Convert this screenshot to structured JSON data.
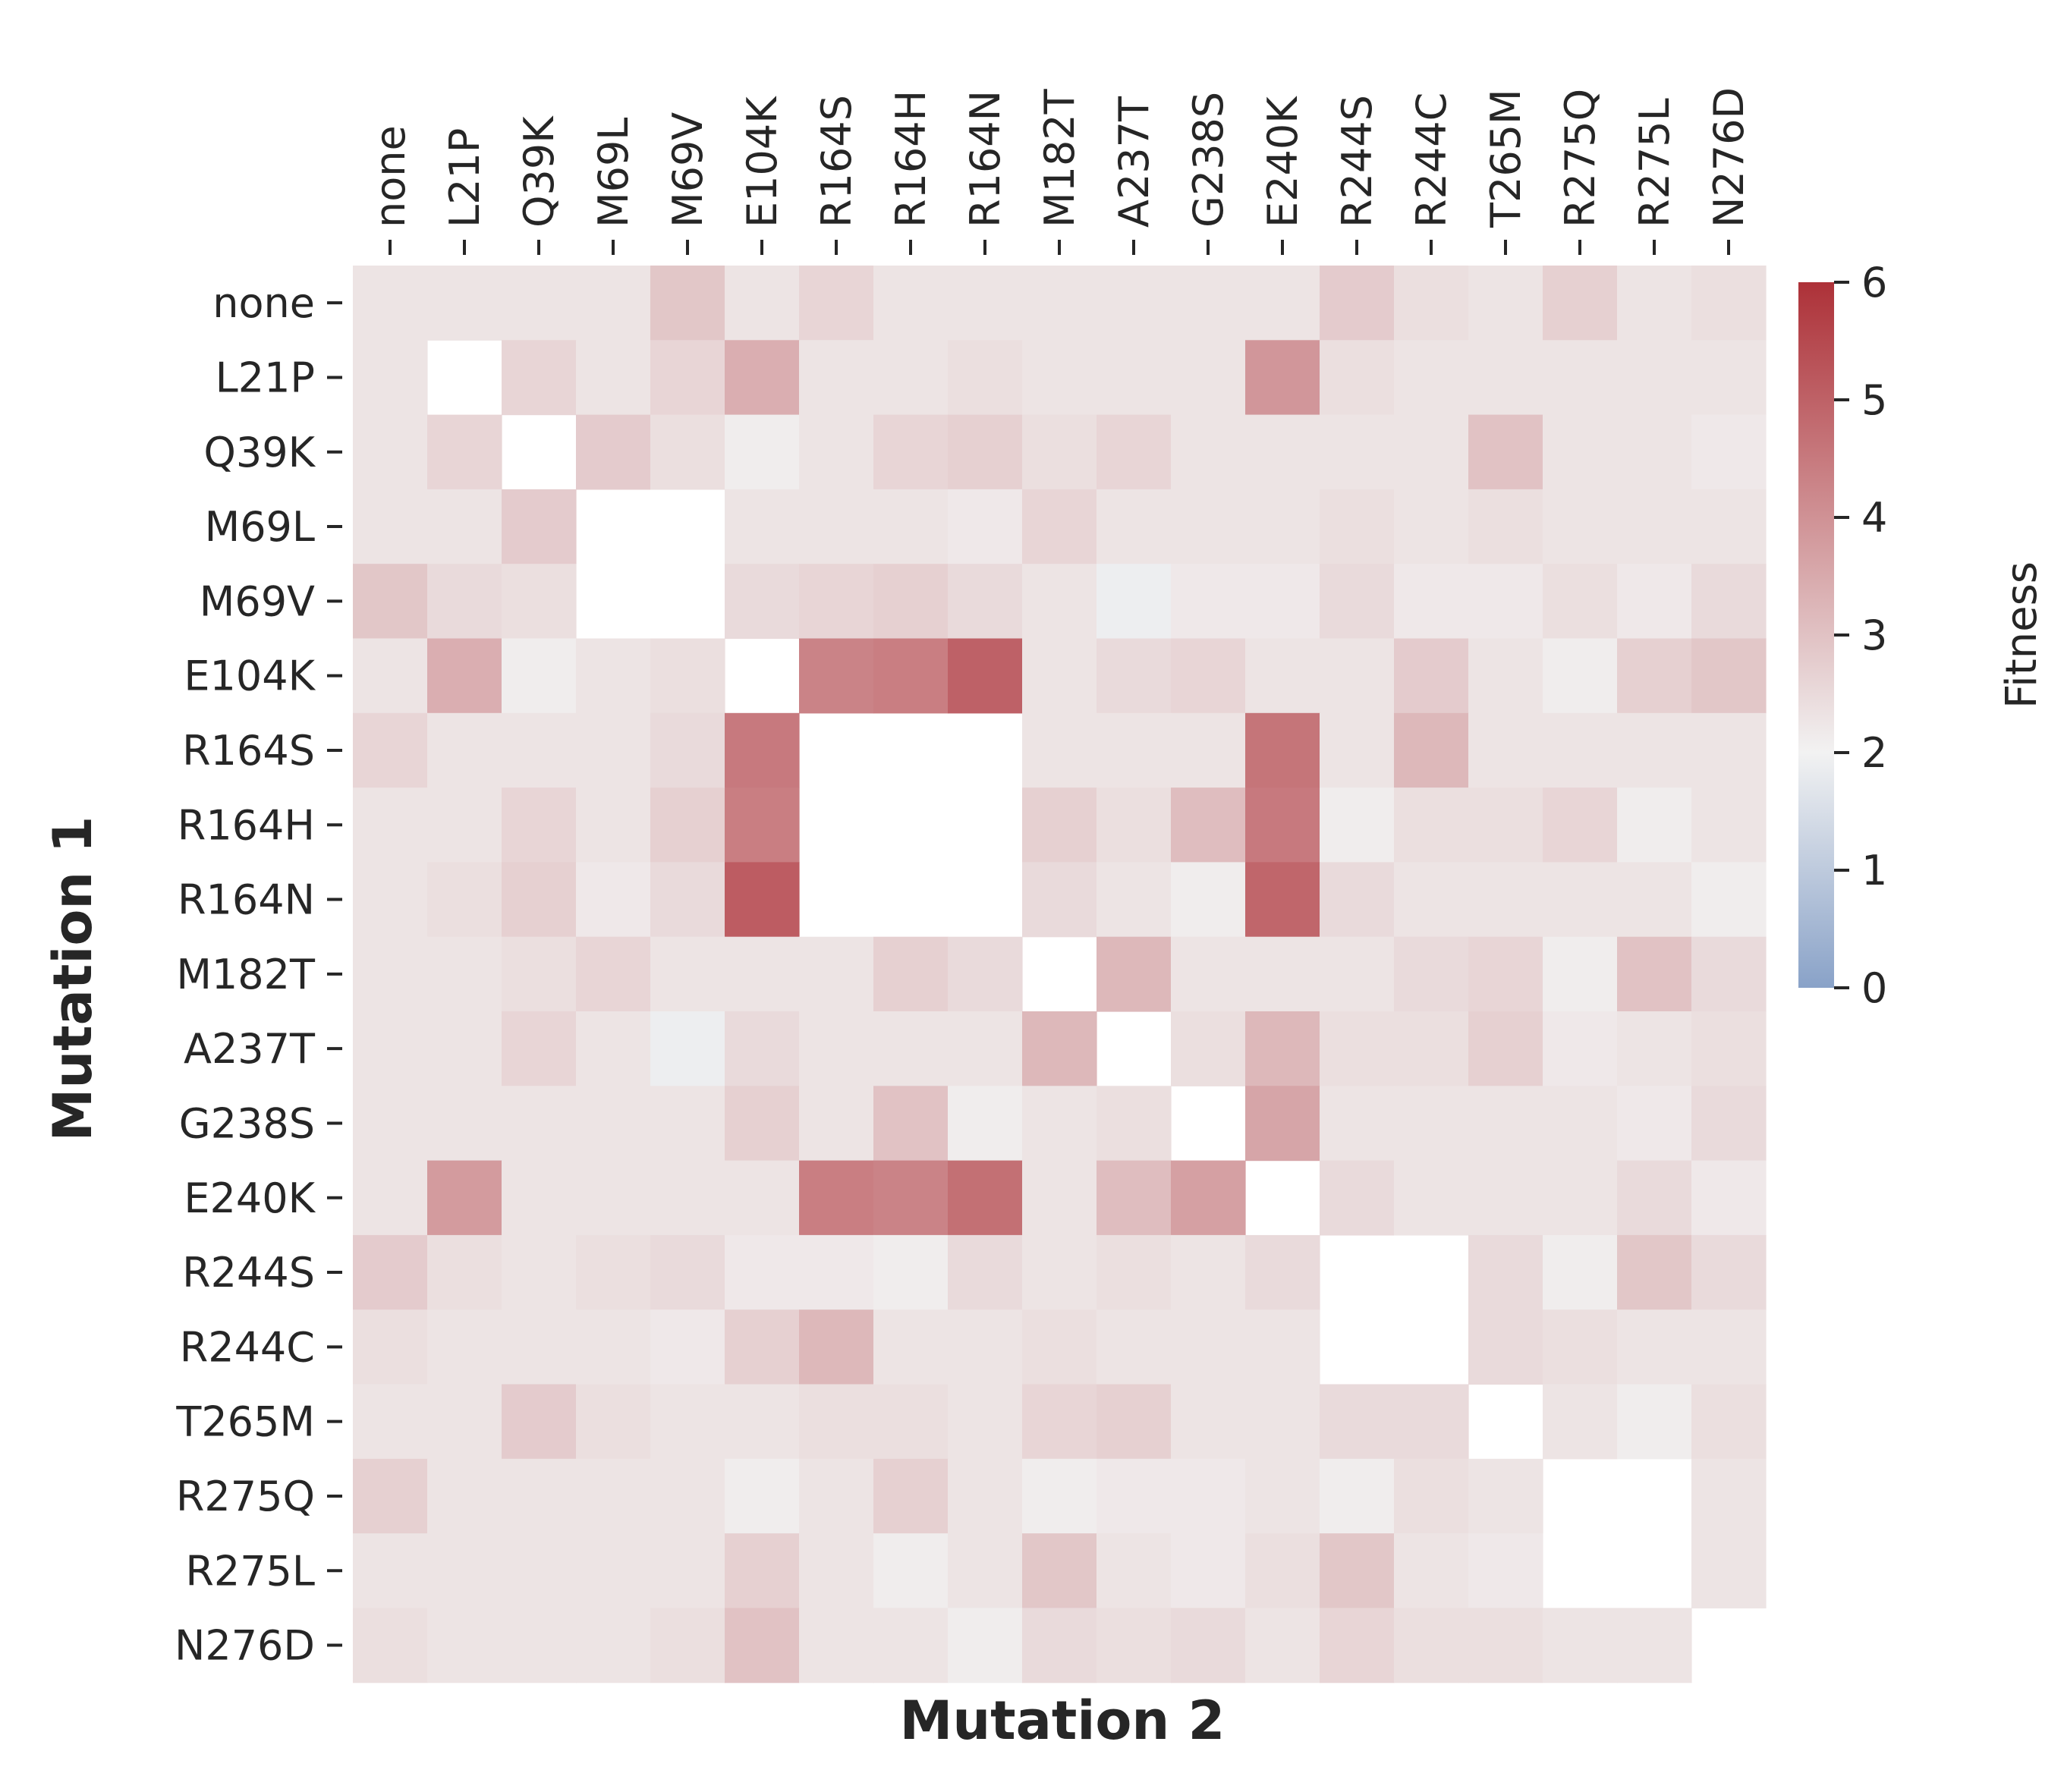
{
  "chart_data": {
    "type": "heatmap",
    "xlabel": "Mutation 2",
    "ylabel": "Mutation 1",
    "categories": [
      "none",
      "L21P",
      "Q39K",
      "M69L",
      "M69V",
      "E104K",
      "R164S",
      "R164H",
      "R164N",
      "M182T",
      "A237T",
      "G238S",
      "E240K",
      "R244S",
      "R244C",
      "T265M",
      "R275Q",
      "R275L",
      "N276D"
    ],
    "values": [
      [
        2.3,
        2.3,
        2.3,
        2.3,
        2.9,
        2.3,
        2.6,
        2.3,
        2.3,
        2.3,
        2.3,
        2.3,
        2.3,
        2.8,
        2.4,
        2.3,
        2.7,
        2.3,
        2.4
      ],
      [
        2.3,
        null,
        2.6,
        2.3,
        2.6,
        3.4,
        2.3,
        2.3,
        2.4,
        2.3,
        2.3,
        2.3,
        3.9,
        2.4,
        2.3,
        2.3,
        2.3,
        2.3,
        2.3
      ],
      [
        2.3,
        2.6,
        null,
        2.8,
        2.4,
        2.1,
        2.3,
        2.6,
        2.7,
        2.4,
        2.6,
        2.3,
        2.3,
        2.3,
        2.3,
        3.0,
        2.3,
        2.3,
        2.2
      ],
      [
        2.3,
        2.3,
        2.8,
        null,
        null,
        2.3,
        2.3,
        2.3,
        2.2,
        2.6,
        2.3,
        2.3,
        2.3,
        2.4,
        2.3,
        2.4,
        2.3,
        2.3,
        2.3
      ],
      [
        2.9,
        2.5,
        2.4,
        null,
        null,
        2.5,
        2.6,
        2.7,
        2.5,
        2.3,
        1.9,
        2.2,
        2.2,
        2.5,
        2.2,
        2.2,
        2.4,
        2.2,
        2.5
      ],
      [
        2.3,
        3.4,
        2.1,
        2.3,
        2.4,
        null,
        4.3,
        4.4,
        5.0,
        2.3,
        2.5,
        2.6,
        2.3,
        2.3,
        2.8,
        2.3,
        2.1,
        2.7,
        2.9
      ],
      [
        2.6,
        2.3,
        2.3,
        2.3,
        2.5,
        4.5,
        null,
        null,
        null,
        2.3,
        2.3,
        2.3,
        4.6,
        2.3,
        3.2,
        2.3,
        2.3,
        2.3,
        2.3
      ],
      [
        2.3,
        2.3,
        2.6,
        2.3,
        2.7,
        4.4,
        null,
        null,
        null,
        2.7,
        2.4,
        3.1,
        4.5,
        2.1,
        2.4,
        2.4,
        2.6,
        2.1,
        2.3
      ],
      [
        2.3,
        2.4,
        2.7,
        2.2,
        2.5,
        5.1,
        null,
        null,
        null,
        2.5,
        2.3,
        2.1,
        4.9,
        2.5,
        2.3,
        2.3,
        2.3,
        2.3,
        2.1
      ],
      [
        2.3,
        2.3,
        2.4,
        2.6,
        2.3,
        2.3,
        2.3,
        2.7,
        2.5,
        null,
        3.2,
        2.3,
        2.3,
        2.3,
        2.5,
        2.6,
        2.1,
        3.0,
        2.5
      ],
      [
        2.3,
        2.3,
        2.6,
        2.3,
        1.9,
        2.5,
        2.3,
        2.3,
        2.3,
        3.2,
        null,
        2.4,
        3.2,
        2.4,
        2.4,
        2.7,
        2.2,
        2.3,
        2.4
      ],
      [
        2.3,
        2.3,
        2.3,
        2.3,
        2.3,
        2.7,
        2.3,
        3.0,
        2.1,
        2.3,
        2.4,
        null,
        3.6,
        2.3,
        2.3,
        2.3,
        2.3,
        2.2,
        2.5
      ],
      [
        2.3,
        3.8,
        2.3,
        2.3,
        2.3,
        2.3,
        4.4,
        4.3,
        4.7,
        2.3,
        3.1,
        3.7,
        null,
        2.5,
        2.3,
        2.3,
        2.3,
        2.5,
        2.2
      ],
      [
        2.8,
        2.4,
        2.3,
        2.4,
        2.5,
        2.2,
        2.2,
        2.1,
        2.5,
        2.3,
        2.4,
        2.3,
        2.5,
        null,
        null,
        2.5,
        2.1,
        2.9,
        2.5
      ],
      [
        2.4,
        2.3,
        2.3,
        2.3,
        2.2,
        2.7,
        3.2,
        2.3,
        2.3,
        2.4,
        2.3,
        2.3,
        2.3,
        null,
        null,
        2.5,
        2.4,
        2.3,
        2.3
      ],
      [
        2.3,
        2.3,
        2.8,
        2.4,
        2.3,
        2.3,
        2.4,
        2.4,
        2.3,
        2.6,
        2.7,
        2.3,
        2.3,
        2.5,
        2.5,
        null,
        2.3,
        2.1,
        2.4
      ],
      [
        2.7,
        2.3,
        2.3,
        2.3,
        2.3,
        2.1,
        2.3,
        2.7,
        2.3,
        2.1,
        2.2,
        2.2,
        2.3,
        2.1,
        2.4,
        2.3,
        null,
        null,
        2.3
      ],
      [
        2.3,
        2.3,
        2.3,
        2.3,
        2.3,
        2.7,
        2.3,
        2.1,
        2.3,
        2.9,
        2.3,
        2.2,
        2.4,
        2.9,
        2.3,
        2.2,
        null,
        null,
        2.3
      ],
      [
        2.4,
        2.3,
        2.3,
        2.3,
        2.4,
        3.0,
        2.3,
        2.3,
        2.1,
        2.5,
        2.4,
        2.5,
        2.3,
        2.6,
        2.4,
        2.4,
        2.3,
        2.3,
        null
      ]
    ],
    "colorbar": {
      "label": "Fitness",
      "range": [
        0,
        6
      ],
      "center": 2,
      "ticks": [
        "0",
        "1",
        "2",
        "3",
        "4",
        "5",
        "6"
      ]
    },
    "colors": {
      "low": "#89a2c8",
      "mid": "#f2f2f2",
      "high": "#ad3138",
      "text": "#262626"
    }
  }
}
